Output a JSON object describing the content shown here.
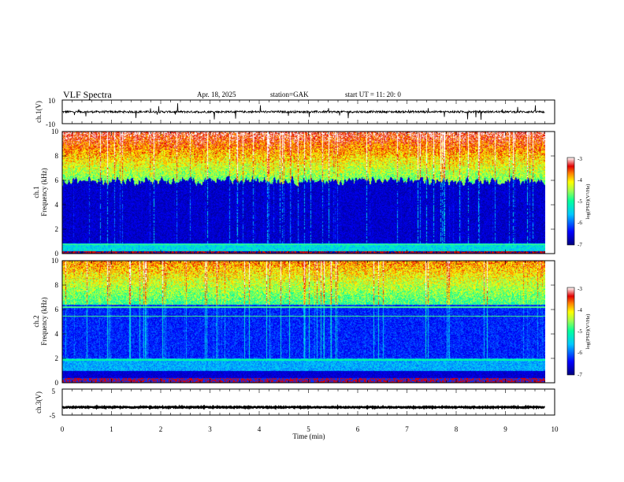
{
  "header": {
    "title": "VLF Spectra",
    "date": "Apr. 18, 2025",
    "station": "station=GAK",
    "start": "start  UT =   11: 20: 0"
  },
  "chart_data": [
    {
      "type": "line",
      "panel": "ch1-waveform",
      "ylabel": "ch.1(V)",
      "yticks": [
        "10",
        "-10"
      ],
      "ylim": [
        -10,
        10
      ],
      "baseline": 0,
      "xlim": [
        0,
        10
      ]
    },
    {
      "type": "heatmap",
      "panel": "ch1-spectrogram",
      "ylabel_line1": "ch.1",
      "ylabel_line2": "Frequency (kHz)",
      "yticks": [
        "0",
        "2",
        "4",
        "6",
        "8",
        "10"
      ],
      "ylim": [
        0,
        10
      ],
      "xlim": [
        0,
        9.8
      ],
      "colorbar": {
        "label": "log(PSD)(V²/Hz)",
        "ticks": [
          "-3",
          "-4",
          "-5",
          "-6",
          "-7"
        ],
        "range": [
          -7,
          -3
        ]
      }
    },
    {
      "type": "heatmap",
      "panel": "ch2-spectrogram",
      "ylabel_line1": "ch.2",
      "ylabel_line2": "Frequency (kHz)",
      "yticks": [
        "0",
        "2",
        "4",
        "6",
        "8",
        "10"
      ],
      "ylim": [
        0,
        10
      ],
      "xlim": [
        0,
        9.8
      ],
      "colorbar": {
        "label": "log(PSD)(V²/Hz)",
        "ticks": [
          "-3",
          "-4",
          "-5",
          "-6",
          "-7"
        ],
        "range": [
          -7,
          -3
        ]
      }
    },
    {
      "type": "line",
      "panel": "ch3-waveform",
      "ylabel": "ch.3(V)",
      "yticks": [
        "5",
        "-5"
      ],
      "ylim": [
        -5,
        5
      ],
      "baseline": -2,
      "xlim": [
        0,
        10
      ]
    }
  ],
  "xaxis": {
    "label": "Time  (min)",
    "ticks": [
      "0",
      "1",
      "2",
      "3",
      "4",
      "5",
      "6",
      "7",
      "8",
      "9",
      "10"
    ],
    "range": [
      0,
      10
    ]
  },
  "colors": {
    "spectrum": [
      "#00007f",
      "#0000ff",
      "#00c8ff",
      "#00ff9e",
      "#a0ff50",
      "#ffff00",
      "#ff8000",
      "#e00000",
      "#ffffff"
    ]
  }
}
